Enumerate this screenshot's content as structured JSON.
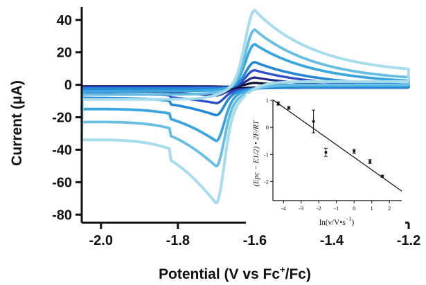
{
  "chart_data": [
    {
      "type": "line",
      "title": "",
      "xlabel": "Potential (V vs Fc",
      "xlabel_sup": "+",
      "xlabel_tail": "/Fc)",
      "ylabel": "Current (μA)",
      "xlim": [
        -2.05,
        -1.2
      ],
      "ylim": [
        -85,
        48
      ],
      "x_axis_reversed": true,
      "xticks": [
        -2.0,
        -1.8,
        -1.6,
        -1.4,
        -1.2
      ],
      "xtick_labels": [
        "-2.0",
        "-1.8",
        "-1.6",
        "-1.4",
        "-1.2"
      ],
      "yticks": [
        40,
        20,
        0,
        -20,
        -40,
        -60,
        -80
      ],
      "ytick_labels": [
        "40",
        "20",
        "0",
        "-20",
        "-40",
        "-60",
        "-80"
      ],
      "grid": false,
      "legend": "none",
      "series": [
        {
          "color": "#0a0f2e",
          "width": 3.2,
          "E_half": -1.655,
          "ip_cathodic": -2.5,
          "ip_anodic": 1.2,
          "baseline_cathodic": -3.0,
          "baseline_anodic": -1.5,
          "tail_left": -3.0,
          "tail_right": -1.8
        },
        {
          "color": "#232a8c",
          "width": 3.2,
          "E_half": -1.655,
          "ip_cathodic": -7.0,
          "ip_anodic": 4.5,
          "baseline_cathodic": -4.0,
          "baseline_anodic": -1.8,
          "tail_left": -4.0,
          "tail_right": -2.0
        },
        {
          "color": "#2f4fc9",
          "width": 3.4,
          "E_half": -1.655,
          "ip_cathodic": -12.0,
          "ip_anodic": 9.0,
          "baseline_cathodic": -5.5,
          "baseline_anodic": -1.8,
          "tail_left": -5.5,
          "tail_right": -1.6
        },
        {
          "color": "#2389d6",
          "width": 3.6,
          "E_half": -1.655,
          "ip_cathodic": -20.0,
          "ip_anodic": 14.0,
          "baseline_cathodic": -8.0,
          "baseline_anodic": -1.5,
          "tail_left": -8.0,
          "tail_right": -0.8
        },
        {
          "color": "#3aa6dd",
          "width": 3.8,
          "E_half": -1.655,
          "ip_cathodic": -37.0,
          "ip_anodic": 25.0,
          "baseline_cathodic": -13.0,
          "baseline_anodic": -0.5,
          "tail_left": -15.0,
          "tail_right": 1.5
        },
        {
          "color": "#66bfe2",
          "width": 3.8,
          "E_half": -1.655,
          "ip_cathodic": -54.0,
          "ip_anodic": 34.0,
          "baseline_cathodic": -20.0,
          "baseline_anodic": 0.0,
          "tail_left": -23.0,
          "tail_right": 4.0
        },
        {
          "color": "#a6dcec",
          "width": 4.0,
          "E_half": -1.655,
          "ip_cathodic": -79.0,
          "ip_anodic": 46.0,
          "baseline_cathodic": -30.0,
          "baseline_anodic": 2.0,
          "tail_left": -34.0,
          "tail_right": 11.0
        }
      ]
    },
    {
      "type": "scatter",
      "title": "",
      "xlabel": "ln(ν/V•s",
      "xlabel_sup": "−1",
      "xlabel_tail": ")",
      "ylabel": "(Epc − E1/2) • 2F/RT",
      "xlim": [
        -4.6,
        2.7
      ],
      "ylim": [
        -2.7,
        1.0
      ],
      "xticks": [
        -4,
        -3,
        -2,
        -1,
        0,
        1,
        2
      ],
      "xtick_labels": [
        "-4",
        "-3",
        "-2",
        "-1",
        "0",
        "1",
        "2"
      ],
      "yticks": [
        1,
        0,
        -1,
        -2
      ],
      "ytick_labels": [
        "1",
        "0",
        "-1",
        "-2"
      ],
      "points": [
        {
          "x": -4.3,
          "y": 0.88,
          "err": 0.06
        },
        {
          "x": -3.7,
          "y": 0.72,
          "err": 0.05
        },
        {
          "x": -2.3,
          "y": 0.22,
          "err": 0.42
        },
        {
          "x": -1.6,
          "y": -0.92,
          "err": 0.15
        },
        {
          "x": 0.0,
          "y": -0.88,
          "err": 0.07
        },
        {
          "x": 0.9,
          "y": -1.26,
          "err": 0.07
        },
        {
          "x": 1.6,
          "y": -1.8,
          "err": 0.04
        }
      ],
      "fit_line": {
        "x": [
          -4.6,
          2.7
        ],
        "y": [
          1.02,
          -2.35
        ]
      }
    }
  ]
}
